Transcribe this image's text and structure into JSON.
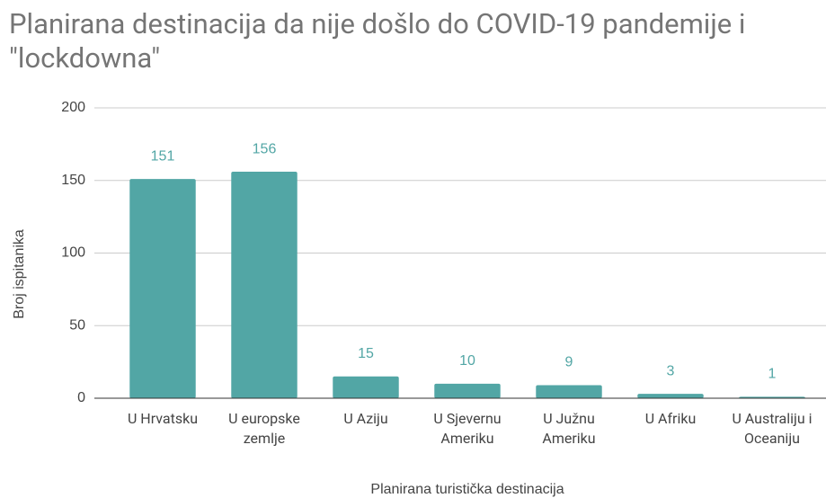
{
  "chart_data": {
    "type": "bar",
    "title": "Planirana destinacija da nije došlo do COVID-19 pandemije i \"lockdowna\"",
    "x_label": "Planirana turistička destinacija",
    "y_label": "Broj ispitanika",
    "categories": [
      "U Hrvatsku",
      "U europske zemlje",
      "U Aziju",
      "U Sjevernu Ameriku",
      "U Južnu Ameriku",
      "U Afriku",
      "U Australiju i Oceaniju"
    ],
    "values": [
      151,
      156,
      15,
      10,
      9,
      3,
      1
    ],
    "color": "#52a6a5",
    "ylim": [
      0,
      200
    ],
    "yticks": [
      0,
      50,
      100,
      150,
      200
    ],
    "grid": true
  }
}
